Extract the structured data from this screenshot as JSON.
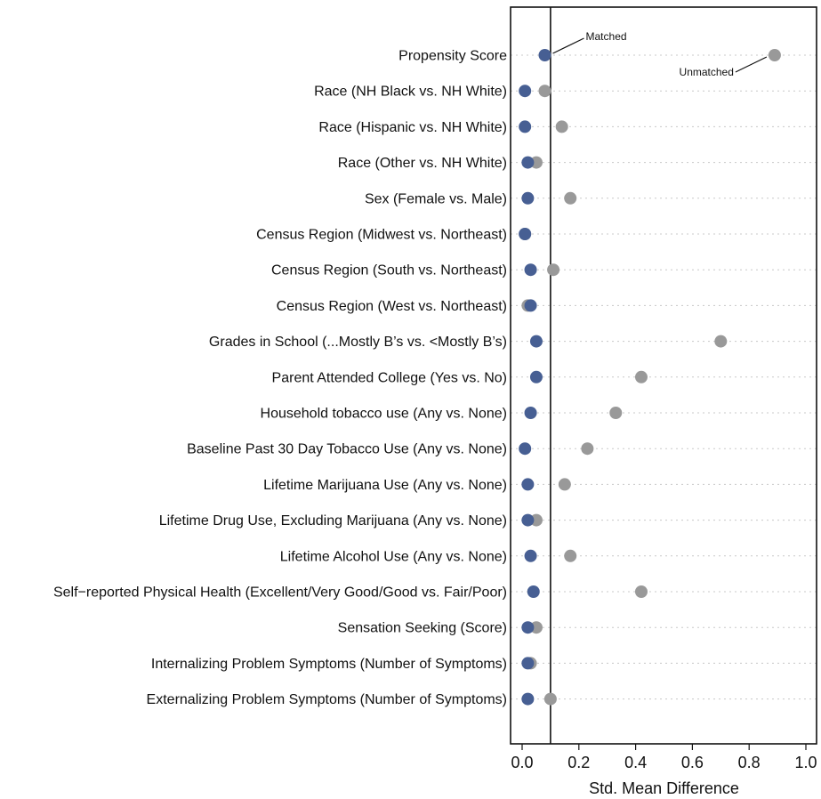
{
  "chart_data": {
    "type": "scatter",
    "title": "",
    "xlabel": "Std. Mean Difference",
    "ylabel": "",
    "xlim": [
      0,
      1.0
    ],
    "xticks": [
      "0.0",
      "0.2",
      "0.4",
      "0.6",
      "0.8",
      "1.0"
    ],
    "reference_line": 0.1,
    "grid": "dotted horizontal row guides",
    "categories": [
      "Propensity Score",
      "Race (NH Black vs. NH White)",
      "Race (Hispanic vs. NH White)",
      "Race (Other vs. NH White)",
      "Sex (Female vs. Male)",
      "Census Region (Midwest vs. Northeast)",
      "Census Region (South vs. Northeast)",
      "Census Region (West vs. Northeast)",
      "Grades in School (...Mostly B’s vs. <Mostly B’s)",
      "Parent Attended College (Yes vs. No)",
      "Household tobacco use (Any vs. None)",
      "Baseline Past 30 Day Tobacco Use (Any vs. None)",
      "Lifetime Marijuana Use (Any vs. None)",
      "Lifetime Drug Use, Excluding Marijuana (Any vs. None)",
      "Lifetime Alcohol Use (Any vs. None)",
      "Self−reported Physical Health (Excellent/Very Good/Good vs. Fair/Poor)",
      "Sensation Seeking (Score)",
      "Internalizing Problem Symptoms (Number of Symptoms)",
      "Externalizing Problem Symptoms (Number of Symptoms)"
    ],
    "series": [
      {
        "name": "Unmatched",
        "color": "#999999",
        "values": [
          0.89,
          0.08,
          0.14,
          0.05,
          0.17,
          0.01,
          0.11,
          0.02,
          0.7,
          0.42,
          0.33,
          0.23,
          0.15,
          0.05,
          0.17,
          0.42,
          0.05,
          0.03,
          0.1
        ]
      },
      {
        "name": "Matched",
        "color": "#475f93",
        "values": [
          0.08,
          0.01,
          0.01,
          0.02,
          0.02,
          0.01,
          0.03,
          0.03,
          0.05,
          0.05,
          0.03,
          0.01,
          0.02,
          0.02,
          0.03,
          0.04,
          0.02,
          0.02,
          0.02
        ]
      }
    ],
    "annotations": [
      {
        "text": "Matched",
        "series": "Matched",
        "row": 0
      },
      {
        "text": "Unmatched",
        "series": "Unmatched",
        "row": 0
      }
    ]
  }
}
